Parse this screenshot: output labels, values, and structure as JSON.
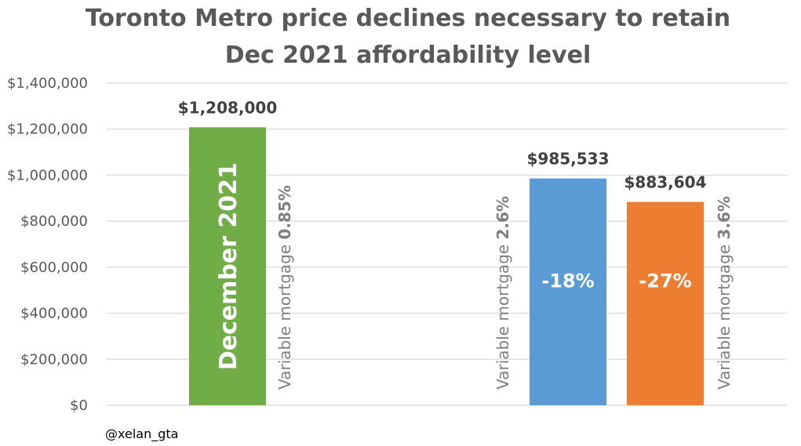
{
  "chart_data": {
    "type": "bar",
    "title_lines": [
      "Toronto Metro price declines necessary to retain",
      "Dec 2021 affordability level"
    ],
    "xlabel": "",
    "ylabel": "",
    "ylim": [
      0,
      1400000
    ],
    "yticks": [
      0,
      200000,
      400000,
      600000,
      800000,
      1000000,
      1200000,
      1400000
    ],
    "ytick_labels": [
      "$0",
      "$200,000",
      "$400,000",
      "$600,000",
      "$800,000",
      "$1,000,000",
      "$1,200,000",
      "$1,400,000"
    ],
    "grid": true,
    "legend": "none",
    "bars": [
      {
        "value": 1208000,
        "value_label": "$1,208,000",
        "color": "#70ad47",
        "inner_label": "December 2021",
        "side_label_text": "Variable mortgage ",
        "side_label_bold": "0.85%"
      },
      {
        "value": 985533,
        "value_label": "$985,533",
        "color": "#5b9bd5",
        "inner_label": "-18%",
        "side_label_text": "Variable mortgage ",
        "side_label_bold": "2.6%"
      },
      {
        "value": 883604,
        "value_label": "$883,604",
        "color": "#ed7d31",
        "inner_label": "-27%",
        "side_label_text": "Variable mortgage ",
        "side_label_bold": "3.6%"
      }
    ],
    "gridline_color": "#d9d9d9"
  },
  "credit": "@xelan_gta"
}
